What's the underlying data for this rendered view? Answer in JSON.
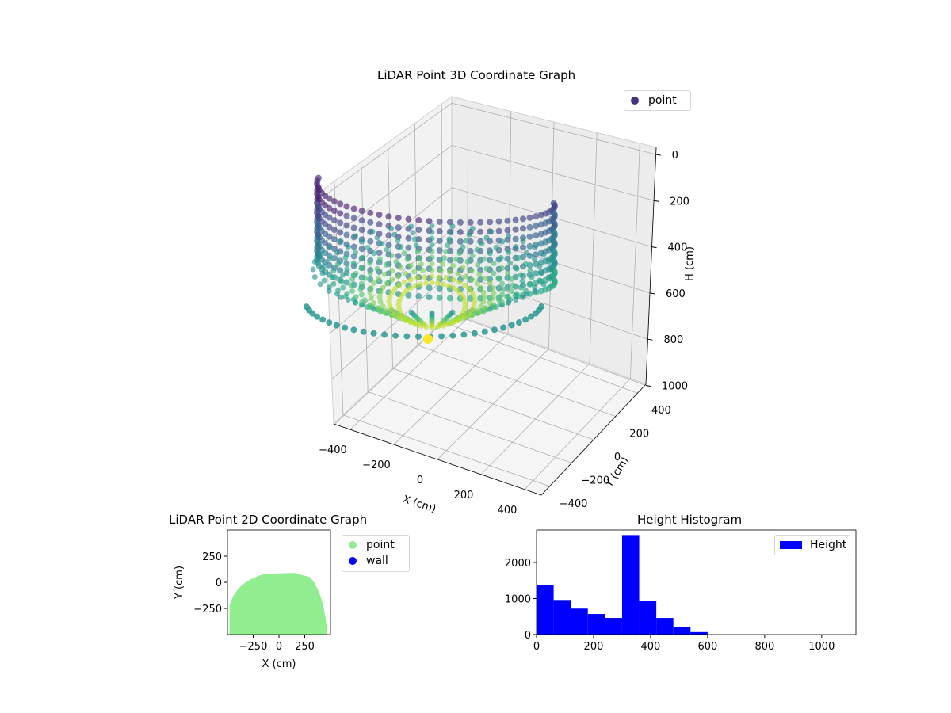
{
  "figure": {
    "plot3d_title": "LiDAR Point 3D Coordinate Graph",
    "plot2d_title": "LiDAR Point 2D Coordinate Graph",
    "hist_title": "Height Histogram"
  },
  "chart_data": [
    {
      "type": "scatter",
      "title": "LiDAR Point 3D Coordinate Graph",
      "xlabel": "X (cm)",
      "ylabel": "Y (cm)",
      "zlabel": "H (cm)",
      "x_ticks": [
        "−400",
        "−200",
        "0",
        "200",
        "400"
      ],
      "y_ticks": [
        "400",
        "200",
        "0",
        "−200",
        "−400"
      ],
      "z_ticks": [
        "0",
        "200",
        "400",
        "600",
        "800",
        "1000"
      ],
      "xlim": [
        -450,
        450
      ],
      "ylim": [
        -450,
        450
      ],
      "zlim": [
        0,
        1100
      ],
      "z_inverted": true,
      "colormap": "viridis",
      "legend": [
        "point"
      ],
      "legend_position": "upper-right",
      "grid": true,
      "marker_color": "#46337e"
    },
    {
      "type": "scatter",
      "title": "LiDAR Point 2D Coordinate Graph",
      "xlabel": "X (cm)",
      "ylabel": "Y (cm)",
      "x_ticks": [
        "−250",
        "0",
        "250"
      ],
      "y_ticks": [
        "250",
        "0",
        "−250"
      ],
      "xlim": [
        -500,
        500
      ],
      "ylim": [
        -500,
        500
      ],
      "legend": [
        "point",
        "wall"
      ],
      "legend_position": "outside-right",
      "series_colors": {
        "point": "#90ee90",
        "wall": "#0000ff"
      }
    },
    {
      "type": "bar",
      "title": "Height Histogram",
      "bin_edges": [
        0,
        60,
        120,
        180,
        240,
        300,
        360,
        420,
        480,
        540,
        600
      ],
      "values": [
        1380,
        960,
        720,
        570,
        460,
        2760,
        940,
        460,
        200,
        70
      ],
      "x_ticks": [
        "0",
        "200",
        "400",
        "600",
        "800",
        "1000"
      ],
      "y_ticks": [
        "0",
        "1000",
        "2000"
      ],
      "xlim": [
        0,
        1120
      ],
      "ylim": [
        0,
        2900
      ],
      "legend": [
        "Height"
      ],
      "legend_position": "upper-right",
      "color": "#0000ff"
    }
  ]
}
